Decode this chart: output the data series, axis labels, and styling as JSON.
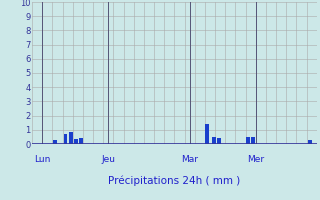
{
  "title": "",
  "xlabel": "Précipitations 24h ( mm )",
  "ylim": [
    0,
    10
  ],
  "xlim": [
    0,
    28
  ],
  "background_color": "#cce8e8",
  "grid_color": "#aaaaaa",
  "bar_color": "#1a3fcc",
  "axis_label_color": "#2020cc",
  "tick_label_color": "#333399",
  "day_labels": [
    {
      "label": "Lun",
      "x": 1.0
    },
    {
      "label": "Jeu",
      "x": 7.5
    },
    {
      "label": "Mar",
      "x": 15.5
    },
    {
      "label": "Mer",
      "x": 22.0
    }
  ],
  "day_vlines": [
    1.0,
    7.5,
    15.5,
    22.0
  ],
  "bars": [
    {
      "x": 2.3,
      "height": 0.28
    },
    {
      "x": 3.3,
      "height": 0.72
    },
    {
      "x": 3.8,
      "height": 0.82
    },
    {
      "x": 4.3,
      "height": 0.38
    },
    {
      "x": 4.8,
      "height": 0.42
    },
    {
      "x": 17.2,
      "height": 1.42
    },
    {
      "x": 17.9,
      "height": 0.52
    },
    {
      "x": 18.4,
      "height": 0.42
    },
    {
      "x": 21.2,
      "height": 0.48
    },
    {
      "x": 21.7,
      "height": 0.52
    },
    {
      "x": 27.3,
      "height": 0.25
    }
  ],
  "bar_width": 0.38,
  "n_xgrid": 28
}
